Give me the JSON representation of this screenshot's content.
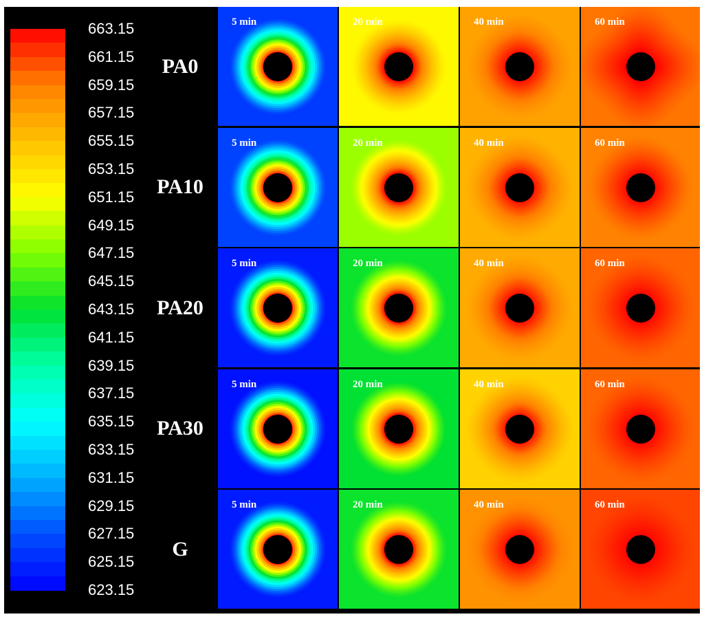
{
  "colorbar": {
    "ticks": [
      "663.15",
      "661.15",
      "659.15",
      "657.15",
      "655.15",
      "653.15",
      "651.15",
      "649.15",
      "647.15",
      "645.15",
      "643.15",
      "641.15",
      "639.15",
      "637.15",
      "635.15",
      "633.15",
      "631.15",
      "629.15",
      "627.15",
      "625.15",
      "623.15"
    ],
    "min": 623.15,
    "max": 663.15,
    "stops": [
      {
        "v": 623.15,
        "color": "#0000ff"
      },
      {
        "v": 627.15,
        "color": "#0050ff"
      },
      {
        "v": 631.15,
        "color": "#00b0ff"
      },
      {
        "v": 635.15,
        "color": "#00ffff"
      },
      {
        "v": 639.15,
        "color": "#00ffa8"
      },
      {
        "v": 643.15,
        "color": "#00e030"
      },
      {
        "v": 647.15,
        "color": "#80ff00"
      },
      {
        "v": 651.15,
        "color": "#ffff00"
      },
      {
        "v": 655.15,
        "color": "#ffc000"
      },
      {
        "v": 659.15,
        "color": "#ff8000"
      },
      {
        "v": 663.15,
        "color": "#ff0000"
      }
    ]
  },
  "rows": [
    {
      "label": "PA0",
      "cells": [
        {
          "time": "5 min",
          "outer": 626.0,
          "inner": 663.15,
          "shape": "circle"
        },
        {
          "time": "20 min",
          "outer": 651.5,
          "inner": 663.15,
          "shape": "circle"
        },
        {
          "time": "40 min",
          "outer": 657.0,
          "inner": 663.15,
          "shape": "diamond"
        },
        {
          "time": "60 min",
          "outer": 659.5,
          "inner": 663.15,
          "shape": "blob"
        }
      ]
    },
    {
      "label": "PA10",
      "cells": [
        {
          "time": "5 min",
          "outer": 626.5,
          "inner": 663.15,
          "shape": "circle"
        },
        {
          "time": "20 min",
          "outer": 648.0,
          "inner": 663.15,
          "shape": "circle"
        },
        {
          "time": "40 min",
          "outer": 656.0,
          "inner": 663.15,
          "shape": "diamond"
        },
        {
          "time": "60 min",
          "outer": 659.0,
          "inner": 663.15,
          "shape": "diamond"
        }
      ]
    },
    {
      "label": "PA20",
      "cells": [
        {
          "time": "5 min",
          "outer": 624.5,
          "inner": 663.15,
          "shape": "circle"
        },
        {
          "time": "20 min",
          "outer": 643.5,
          "inner": 663.15,
          "shape": "circle"
        },
        {
          "time": "40 min",
          "outer": 656.5,
          "inner": 663.15,
          "shape": "diamond"
        },
        {
          "time": "60 min",
          "outer": 660.0,
          "inner": 663.15,
          "shape": "diamond"
        }
      ]
    },
    {
      "label": "PA30",
      "cells": [
        {
          "time": "5 min",
          "outer": 624.0,
          "inner": 663.15,
          "shape": "circle"
        },
        {
          "time": "20 min",
          "outer": 643.0,
          "inner": 663.15,
          "shape": "circle"
        },
        {
          "time": "40 min",
          "outer": 654.0,
          "inner": 663.15,
          "shape": "diamond"
        },
        {
          "time": "60 min",
          "outer": 660.0,
          "inner": 663.15,
          "shape": "diamond"
        }
      ]
    },
    {
      "label": "G",
      "cells": [
        {
          "time": "5 min",
          "outer": 624.5,
          "inner": 663.15,
          "shape": "circle"
        },
        {
          "time": "20 min",
          "outer": 643.5,
          "inner": 663.15,
          "shape": "circle"
        },
        {
          "time": "40 min",
          "outer": 658.0,
          "inner": 663.15,
          "shape": "diamond"
        },
        {
          "time": "60 min",
          "outer": 661.0,
          "inner": 663.15,
          "shape": "diamond"
        }
      ]
    }
  ]
}
